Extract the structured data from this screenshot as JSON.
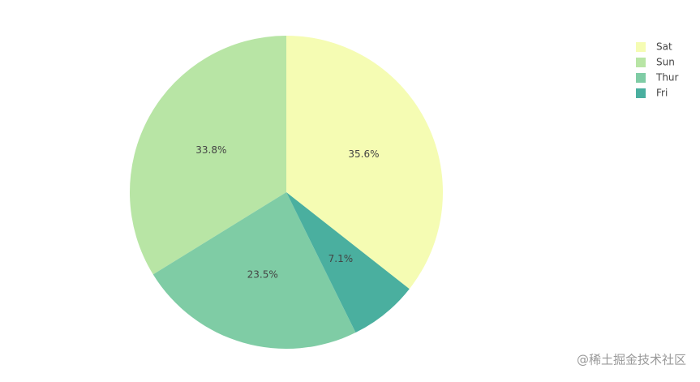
{
  "chart_data": {
    "type": "pie",
    "categories": [
      "Sat",
      "Sun",
      "Thur",
      "Fri"
    ],
    "values": [
      35.6,
      33.8,
      23.5,
      7.1
    ],
    "value_labels": [
      "35.6%",
      "33.8%",
      "23.5%",
      "7.1%"
    ],
    "colors": [
      "#f5fcb3",
      "#b8e5a5",
      "#7fcca5",
      "#4aaf9f"
    ],
    "legend": "top-right"
  },
  "watermark": "@稀土掘金技术社区"
}
